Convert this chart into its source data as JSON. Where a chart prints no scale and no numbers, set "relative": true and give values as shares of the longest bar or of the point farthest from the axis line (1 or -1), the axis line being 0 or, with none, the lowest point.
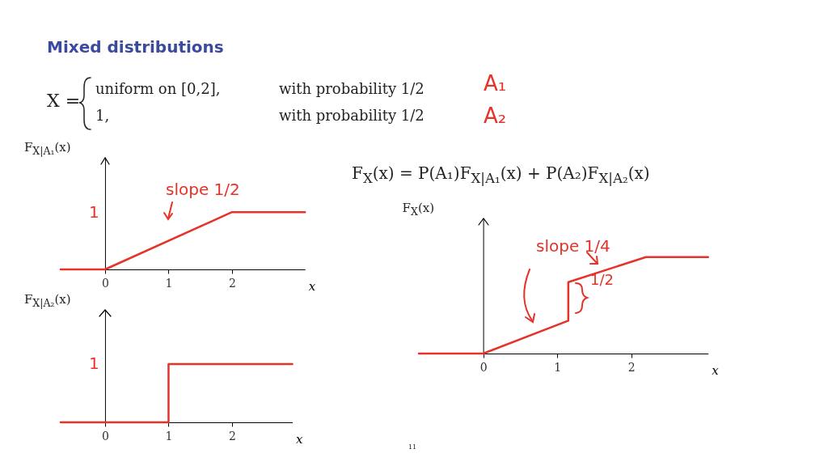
{
  "chart_data": [
    {
      "type": "line",
      "relative": true,
      "title": "Mixed distributions",
      "ylabel": "F$_{X|A₁}$(x)",
      "xlabel": "x",
      "x": [
        -0.7,
        0,
        2,
        3.15
      ],
      "xlim": [
        -0.7,
        3.15
      ],
      "xticks": [
        0,
        1,
        2
      ],
      "series": [
        {
          "color": "#e5332a",
          "values": [
            0,
            0,
            1,
            1
          ]
        }
      ],
      "annotations": [
        "X =",
        "uniform on [0,2],",
        "with probability 1/2",
        "A₁",
        "1,",
        "with probability 1/2",
        "A₂",
        "slope 1/2",
        "1"
      ]
    },
    {
      "type": "line",
      "relative": true,
      "ylabel": "F$_{X|A₂}$(x)",
      "xlabel": "x",
      "x": [
        -0.7,
        1,
        1,
        2.95
      ],
      "xlim": [
        -0.7,
        2.95
      ],
      "xticks": [
        0,
        1,
        2
      ],
      "series": [
        {
          "color": "#e5332a",
          "values": [
            0,
            0,
            1,
            1
          ]
        }
      ],
      "annotations": [
        "1",
        "11"
      ]
    },
    {
      "type": "line",
      "relative": true,
      "ylabel": "F$_{X}$(x)",
      "xlabel": "x",
      "x": [
        -0.87,
        0,
        1.15,
        1.15,
        2.2,
        3.04
      ],
      "xlim": [
        -0.87,
        3.04
      ],
      "xticks": [
        0,
        1,
        2
      ],
      "series": [
        {
          "color": "#e5332a",
          "values": [
            0,
            0,
            0.34,
            0.74,
            1,
            1
          ]
        }
      ],
      "annotations": [
        "F$_{X}$(x) = P(A₁)F$_{X|A₁}$(x) + P(A₂)F$_{X|A₂}$(x)",
        "slope 1/4",
        "1/2"
      ]
    }
  ]
}
